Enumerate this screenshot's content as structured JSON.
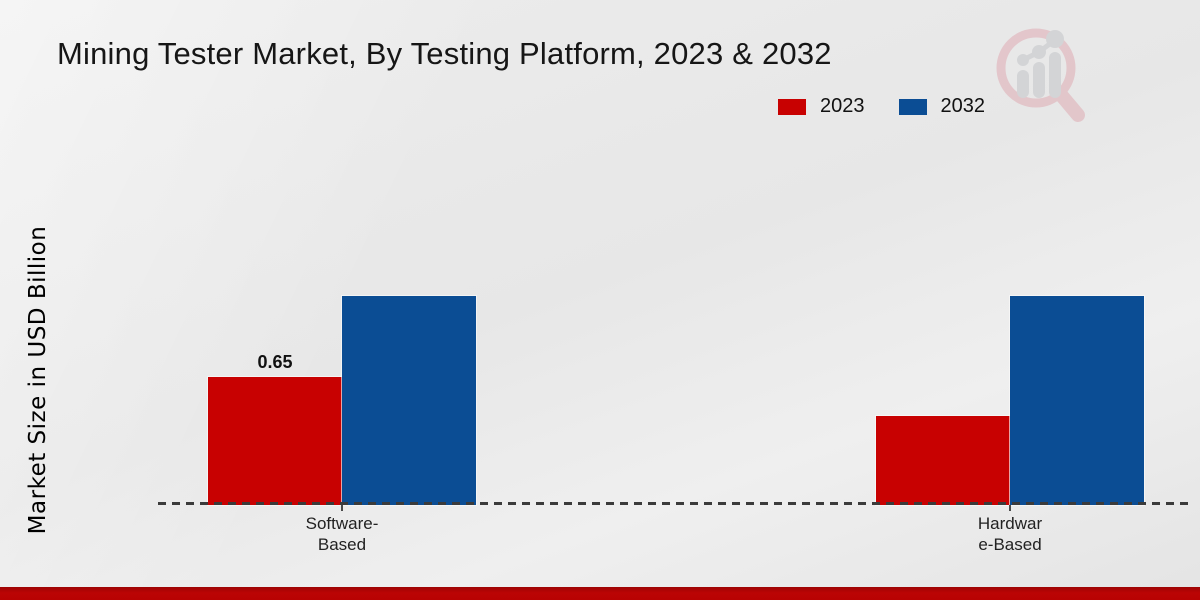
{
  "header": {
    "title": "Mining Tester Market, By Testing Platform, 2023 & 2032"
  },
  "legend": {
    "items": [
      {
        "label": "2023",
        "color": "#c80101"
      },
      {
        "label": "2032",
        "color": "#0b4d94"
      }
    ]
  },
  "chart_data": {
    "type": "bar",
    "title": "Mining Tester Market, By Testing Platform, 2023 & 2032",
    "xlabel": "",
    "ylabel": "Market Size in USD Billion",
    "categories": [
      "Software-Based",
      "Hardware-Based"
    ],
    "category_display_lines": [
      [
        "Software-",
        "Based"
      ],
      [
        "Hardwar",
        "e-Based"
      ]
    ],
    "series": [
      {
        "name": "2023",
        "color": "#c80101",
        "values": [
          0.65,
          0.45
        ]
      },
      {
        "name": "2032",
        "color": "#0b4d94",
        "values": [
          1.06,
          1.06
        ]
      }
    ],
    "data_labels": [
      {
        "series_index": 0,
        "category_index": 0,
        "text": "0.65"
      }
    ],
    "ylim": [
      0,
      1.2
    ],
    "grid": false,
    "legend_position": "top-right",
    "baseline_style": "dashed"
  },
  "colors": {
    "accent_red": "#c80101",
    "accent_blue": "#0b4d94",
    "footer_strip": "#b80202",
    "axis": "#3b3b3b"
  },
  "watermark": {
    "icon": "magnifier-bar-chart-logo"
  }
}
